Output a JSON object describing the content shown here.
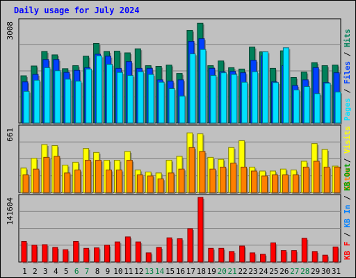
{
  "title": "Daily usage for July 2024",
  "colors": {
    "hits": "#00805a",
    "files": "#0040ff",
    "pages": "#00e0ff",
    "visits": "#ffff00",
    "sites": "#ff8000",
    "kbf": "#ff0000",
    "kbin": "#0080ff",
    "kbout": "#00a000",
    "title": "#0000ff",
    "weekend_label": "#008040",
    "weekday_label": "#000000"
  },
  "chart_data": [
    {
      "type": "bar",
      "panel": "hits-files-pages",
      "ymax": 3008,
      "ymax_label": "3008",
      "right_labels": [
        "Pages",
        "Files",
        "Hits"
      ],
      "right_label_separator": " / ",
      "categories": [
        "1",
        "2",
        "3",
        "4",
        "5",
        "6",
        "7",
        "8",
        "9",
        "10",
        "11",
        "12",
        "13",
        "14",
        "15",
        "16",
        "17",
        "18",
        "19",
        "20",
        "21",
        "22",
        "23",
        "24",
        "25",
        "26",
        "27",
        "28",
        "29",
        "30",
        "31"
      ],
      "weekend_days": [
        6,
        7,
        13,
        14,
        20,
        21,
        27,
        28
      ],
      "series": [
        {
          "name": "Hits",
          "values": [
            1400,
            1690,
            2120,
            2020,
            1610,
            1700,
            1980,
            2360,
            2120,
            2130,
            2080,
            2200,
            1700,
            1680,
            1720,
            1470,
            2750,
            2960,
            1700,
            1840,
            1640,
            1600,
            2250,
            2110,
            1620,
            2140,
            1350,
            1510,
            1790,
            1700,
            1720
          ]
        },
        {
          "name": "Files",
          "values": [
            1220,
            1440,
            1880,
            1880,
            1500,
            1560,
            1640,
            2040,
            1980,
            1620,
            1820,
            1620,
            1620,
            1280,
            1240,
            1280,
            2420,
            2500,
            1620,
            1520,
            1530,
            1490,
            1860,
            1990,
            1220,
            1700,
            1110,
            1280,
            1640,
            1200,
            1490
          ]
        },
        {
          "name": "Pages",
          "values": [
            940,
            1270,
            1640,
            1550,
            1300,
            1240,
            1600,
            1990,
            1740,
            1500,
            1410,
            1520,
            1440,
            1210,
            1020,
            800,
            2050,
            2180,
            1410,
            1490,
            1440,
            1210,
            1520,
            2110,
            1200,
            2230,
            980,
            1080,
            870,
            1180,
            920
          ]
        }
      ]
    },
    {
      "type": "bar",
      "panel": "visits-sites",
      "ymax": 661,
      "ymax_label": "661",
      "right_labels": [
        "Sites",
        "Visits"
      ],
      "right_label_separator": " / ",
      "categories": [
        "1",
        "2",
        "3",
        "4",
        "5",
        "6",
        "7",
        "8",
        "9",
        "10",
        "11",
        "12",
        "13",
        "14",
        "15",
        "16",
        "17",
        "18",
        "19",
        "20",
        "21",
        "22",
        "23",
        "24",
        "25",
        "26",
        "27",
        "28",
        "29",
        "30",
        "31"
      ],
      "series": [
        {
          "name": "Visits",
          "values": [
            250,
            350,
            490,
            480,
            280,
            310,
            450,
            410,
            330,
            330,
            420,
            230,
            210,
            200,
            330,
            370,
            610,
            600,
            360,
            340,
            460,
            530,
            260,
            220,
            220,
            240,
            230,
            320,
            500,
            440,
            270
          ]
        },
        {
          "name": "Sites",
          "values": [
            180,
            240,
            360,
            370,
            200,
            230,
            330,
            330,
            230,
            230,
            330,
            180,
            170,
            140,
            200,
            240,
            460,
            420,
            240,
            260,
            300,
            260,
            220,
            170,
            180,
            180,
            180,
            260,
            320,
            260,
            260
          ]
        }
      ]
    },
    {
      "type": "bar",
      "panel": "kbf-kbin-kbout",
      "ymax": 141604,
      "ymax_label": "141604",
      "right_labels": [
        "KB F",
        "KB In",
        "KB Out"
      ],
      "right_label_separator": " / ",
      "categories": [
        "1",
        "2",
        "3",
        "4",
        "5",
        "6",
        "7",
        "8",
        "9",
        "10",
        "11",
        "12",
        "13",
        "14",
        "15",
        "16",
        "17",
        "18",
        "19",
        "20",
        "21",
        "22",
        "23",
        "24",
        "25",
        "26",
        "27",
        "28",
        "29",
        "30",
        "31"
      ],
      "series": [
        {
          "name": "KB F",
          "values": [
            45000,
            37000,
            38000,
            32000,
            27000,
            45000,
            30000,
            31000,
            37000,
            44000,
            55000,
            44000,
            20000,
            32000,
            53000,
            51000,
            73000,
            141604,
            30000,
            30000,
            23000,
            35000,
            20000,
            17000,
            42000,
            25000,
            25000,
            52000,
            23000,
            15000,
            33000
          ]
        }
      ]
    }
  ]
}
